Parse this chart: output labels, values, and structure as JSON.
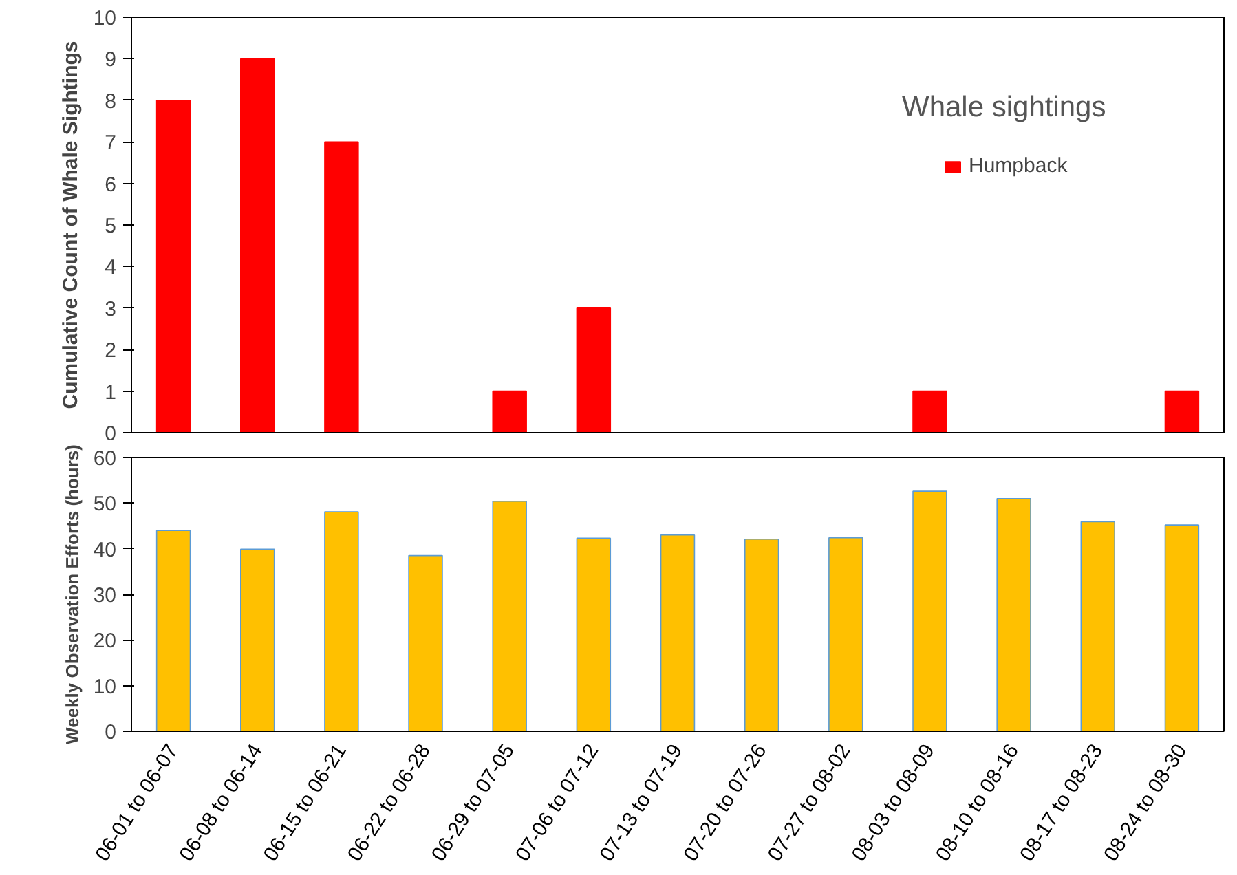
{
  "chart_data": [
    {
      "type": "bar",
      "title": "Whale sightings",
      "ylabel": "Cumulative Count of Whale Sightings",
      "categories": [
        null,
        null,
        null,
        null,
        null,
        null,
        null,
        null,
        null,
        null,
        null,
        null,
        null
      ],
      "series": [
        {
          "name": "Humpback",
          "color": "#ff0000",
          "values": [
            8,
            9,
            7,
            0,
            1,
            3,
            0,
            0,
            0,
            1,
            0,
            0,
            1
          ]
        }
      ],
      "ylim": [
        0,
        10
      ],
      "yticks": [
        0,
        1,
        2,
        3,
        4,
        5,
        6,
        7,
        8,
        9,
        10
      ],
      "grid": false,
      "legend": "top right",
      "tick_labels": "y"
    },
    {
      "type": "bar",
      "ylabel": "Weekly Observation Efforts (hours)",
      "categories": [
        "06-01 to 06-07",
        "06-08 to 06-14",
        "06-15 to 06-21",
        "06-22 to 06-28",
        "06-29 to 07-05",
        "07-06 to 07-12",
        "07-13 to 07-19",
        "07-20 to 07-26",
        "07-27 to 08-02",
        "08-03 to 08-09",
        "08-10 to 08-16",
        "08-17 to 08-23",
        "08-24 to 08-30"
      ],
      "series": [
        {
          "color": "#ffc000",
          "values": [
            44.0,
            39.9,
            48.1,
            38.5,
            50.4,
            42.3,
            43.0,
            42.1,
            42.4,
            52.6,
            51.0,
            45.9,
            45.2
          ]
        }
      ],
      "ylim": [
        0,
        60
      ],
      "yticks": [
        0,
        10,
        20,
        30,
        40,
        50,
        60
      ],
      "grid": false,
      "legend": false
    }
  ]
}
